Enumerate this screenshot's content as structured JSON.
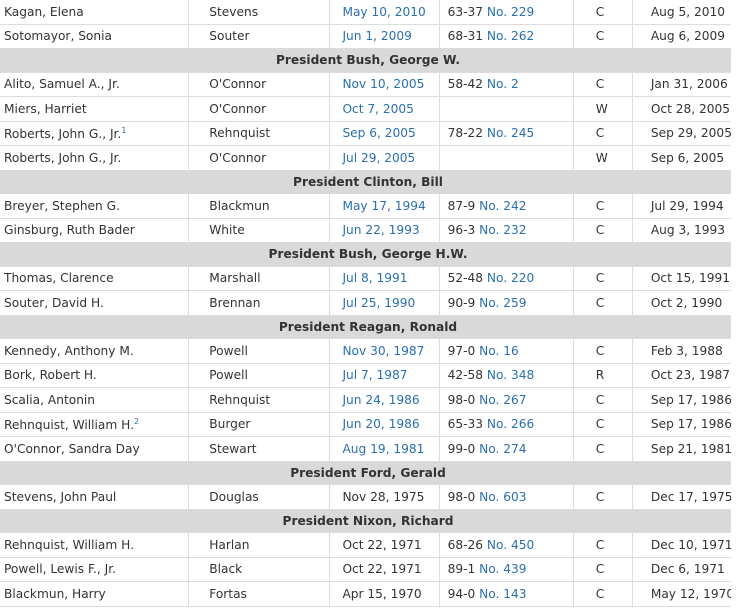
{
  "rows": [
    {
      "type": "nom",
      "nominee": "Kagan, Elena",
      "sup": "",
      "succeeding": "Stevens",
      "date": "May 10, 2010",
      "date_link": true,
      "vote": "63-37",
      "no_label": "No.",
      "no": "229",
      "action": "C",
      "oath": "Aug 5, 2010"
    },
    {
      "type": "nom",
      "nominee": "Sotomayor, Sonia",
      "sup": "",
      "succeeding": "Souter",
      "date": "Jun 1, 2009",
      "date_link": true,
      "vote": "68-31",
      "no_label": "No.",
      "no": "262",
      "action": "C",
      "oath": "Aug 6, 2009"
    },
    {
      "type": "header",
      "label": "President Bush, George W."
    },
    {
      "type": "nom",
      "nominee": "Alito, Samuel A., Jr.",
      "sup": "",
      "succeeding": "O'Connor",
      "date": "Nov 10, 2005",
      "date_link": true,
      "vote": "58-42",
      "no_label": "No.",
      "no": "2",
      "action": "C",
      "oath": "Jan 31, 2006"
    },
    {
      "type": "nom",
      "nominee": "Miers, Harriet",
      "sup": "",
      "succeeding": "O'Connor",
      "date": "Oct 7, 2005",
      "date_link": true,
      "vote": "",
      "no_label": "",
      "no": "",
      "action": "W",
      "oath": "Oct 28, 2005"
    },
    {
      "type": "nom",
      "nominee": "Roberts, John G., Jr.",
      "sup": "1",
      "succeeding": "Rehnquist",
      "date": "Sep 6, 2005",
      "date_link": true,
      "vote": "78-22",
      "no_label": "No.",
      "no": "245",
      "action": "C",
      "oath": "Sep 29, 2005"
    },
    {
      "type": "nom",
      "nominee": "Roberts, John G., Jr.",
      "sup": "",
      "succeeding": "O'Connor",
      "date": "Jul 29, 2005",
      "date_link": true,
      "vote": "",
      "no_label": "",
      "no": "",
      "action": "W",
      "oath": "Sep 6, 2005"
    },
    {
      "type": "header",
      "label": "President Clinton, Bill"
    },
    {
      "type": "nom",
      "nominee": "Breyer, Stephen G.",
      "sup": "",
      "succeeding": "Blackmun",
      "date": "May 17, 1994",
      "date_link": true,
      "vote": "87-9",
      "no_label": "No.",
      "no": "242",
      "action": "C",
      "oath": "Jul 29, 1994"
    },
    {
      "type": "nom",
      "nominee": "Ginsburg, Ruth Bader",
      "sup": "",
      "succeeding": "White",
      "date": "Jun 22, 1993",
      "date_link": true,
      "vote": "96-3",
      "no_label": "No.",
      "no": "232",
      "action": "C",
      "oath": "Aug 3, 1993"
    },
    {
      "type": "header",
      "label": "President Bush, George H.W."
    },
    {
      "type": "nom",
      "nominee": "Thomas, Clarence",
      "sup": "",
      "succeeding": "Marshall",
      "date": "Jul 8, 1991",
      "date_link": true,
      "vote": "52-48",
      "no_label": "No.",
      "no": "220",
      "action": "C",
      "oath": "Oct 15, 1991"
    },
    {
      "type": "nom",
      "nominee": "Souter, David H.",
      "sup": "",
      "succeeding": "Brennan",
      "date": "Jul 25, 1990",
      "date_link": true,
      "vote": "90-9",
      "no_label": "No.",
      "no": "259",
      "action": "C",
      "oath": "Oct 2, 1990"
    },
    {
      "type": "header",
      "label": "President Reagan, Ronald"
    },
    {
      "type": "nom",
      "nominee": "Kennedy, Anthony M.",
      "sup": "",
      "succeeding": "Powell",
      "date": "Nov 30, 1987",
      "date_link": true,
      "vote": "97-0",
      "no_label": "No.",
      "no": "16",
      "action": "C",
      "oath": "Feb 3, 1988"
    },
    {
      "type": "nom",
      "nominee": "Bork, Robert H.",
      "sup": "",
      "succeeding": "Powell",
      "date": "Jul 7, 1987",
      "date_link": true,
      "vote": "42-58",
      "no_label": "No.",
      "no": "348",
      "action": "R",
      "oath": "Oct 23, 1987"
    },
    {
      "type": "nom",
      "nominee": "Scalia, Antonin",
      "sup": "",
      "succeeding": "Rehnquist",
      "date": "Jun 24, 1986",
      "date_link": true,
      "vote": "98-0",
      "no_label": "No.",
      "no": "267",
      "action": "C",
      "oath": "Sep 17, 1986"
    },
    {
      "type": "nom",
      "nominee": "Rehnquist, William H.",
      "sup": "2",
      "succeeding": "Burger",
      "date": "Jun 20, 1986",
      "date_link": true,
      "vote": "65-33",
      "no_label": "No.",
      "no": "266",
      "action": "C",
      "oath": "Sep 17, 1986"
    },
    {
      "type": "nom",
      "nominee": "O'Connor, Sandra Day",
      "sup": "",
      "succeeding": "Stewart",
      "date": "Aug 19, 1981",
      "date_link": true,
      "vote": "99-0",
      "no_label": "No.",
      "no": "274",
      "action": "C",
      "oath": "Sep 21, 1981"
    },
    {
      "type": "header",
      "label": "President Ford, Gerald"
    },
    {
      "type": "nom",
      "nominee": "Stevens, John Paul",
      "sup": "",
      "succeeding": "Douglas",
      "date": "Nov 28, 1975",
      "date_link": false,
      "vote": "98-0",
      "no_label": "No.",
      "no": "603",
      "action": "C",
      "oath": "Dec 17, 1975"
    },
    {
      "type": "header",
      "label": "President Nixon, Richard"
    },
    {
      "type": "nom",
      "nominee": "Rehnquist, William H.",
      "sup": "",
      "succeeding": "Harlan",
      "date": "Oct 22, 1971",
      "date_link": false,
      "vote": "68-26",
      "no_label": "No.",
      "no": "450",
      "action": "C",
      "oath": "Dec 10, 1971"
    },
    {
      "type": "nom",
      "nominee": "Powell, Lewis F., Jr.",
      "sup": "",
      "succeeding": "Black",
      "date": "Oct 22, 1971",
      "date_link": false,
      "vote": "89-1",
      "no_label": "No.",
      "no": "439",
      "action": "C",
      "oath": "Dec 6, 1971"
    },
    {
      "type": "nom",
      "nominee": "Blackmun, Harry",
      "sup": "",
      "succeeding": "Fortas",
      "date": "Apr 15, 1970",
      "date_link": false,
      "vote": "94-0",
      "no_label": "No.",
      "no": "143",
      "action": "C",
      "oath": "May 12, 1970"
    }
  ]
}
